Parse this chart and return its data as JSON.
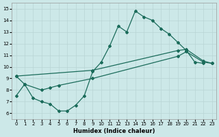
{
  "xlabel": "Humidex (Indice chaleur)",
  "bg_color": "#cce8e8",
  "grid_color": "#b8d4d4",
  "line_color": "#1a6b5a",
  "xlim": [
    -0.5,
    23.5
  ],
  "ylim": [
    5.5,
    15.5
  ],
  "xticks": [
    0,
    1,
    2,
    3,
    4,
    5,
    6,
    7,
    8,
    9,
    10,
    11,
    12,
    13,
    14,
    15,
    16,
    17,
    18,
    19,
    20,
    21,
    22,
    23
  ],
  "yticks": [
    6,
    7,
    8,
    9,
    10,
    11,
    12,
    13,
    14,
    15
  ],
  "line1_x": [
    0,
    1,
    2,
    3,
    4,
    5,
    6,
    7,
    8,
    9,
    10,
    11,
    12,
    13,
    14,
    15,
    16,
    17,
    18,
    19,
    20,
    21,
    22
  ],
  "line1_y": [
    9.2,
    8.5,
    7.3,
    7.0,
    6.8,
    6.2,
    6.2,
    6.7,
    7.5,
    9.6,
    10.4,
    11.8,
    13.5,
    13.0,
    14.8,
    14.3,
    14.0,
    13.3,
    12.8,
    12.1,
    11.4,
    10.4,
    10.3
  ],
  "line2_x": [
    0,
    9,
    19,
    20,
    22,
    23
  ],
  "line2_y": [
    9.2,
    9.7,
    11.4,
    11.5,
    10.5,
    10.3
  ],
  "line3_x": [
    0,
    1,
    3,
    4,
    5,
    9,
    19,
    20,
    22,
    23
  ],
  "line3_y": [
    7.5,
    8.5,
    8.0,
    8.2,
    8.4,
    9.0,
    10.9,
    11.3,
    10.4,
    10.3
  ]
}
